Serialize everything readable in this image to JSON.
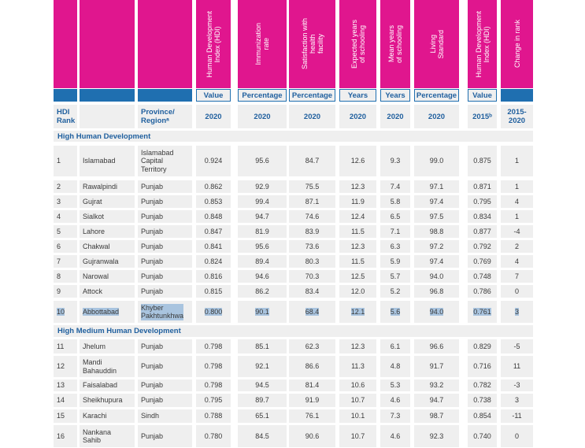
{
  "columns": [
    {
      "key": "rank",
      "header": "HDI Rank",
      "unit": "",
      "year": ""
    },
    {
      "key": "district",
      "header": "",
      "unit": "",
      "year": ""
    },
    {
      "key": "province",
      "header": "Province/\nRegionᵃ",
      "unit": "",
      "year": ""
    },
    {
      "key": "hdi",
      "header": "Human Development\nIndex (HDI)",
      "unit": "Value",
      "year": "2020"
    },
    {
      "key": "immunization",
      "header": "Immunization\nrate",
      "unit": "Percentage",
      "year": "2020"
    },
    {
      "key": "satisfaction",
      "header": "Satisfaction with\nhealth\nfacility",
      "unit": "Percentage",
      "year": "2020"
    },
    {
      "key": "expected",
      "header": "Expected years\nof schooling",
      "unit": "Years",
      "year": "2020"
    },
    {
      "key": "mean",
      "header": "Mean years\nof schooling",
      "unit": "Years",
      "year": "2020"
    },
    {
      "key": "living",
      "header": "Living\nStandard",
      "unit": "Percentage",
      "year": "2020"
    },
    {
      "key": "hdi2015",
      "header": "Human Development\nIndex (HDI)",
      "unit": "Value",
      "year": "2015ᵇ"
    },
    {
      "key": "change",
      "header": "Change in rank",
      "unit": "",
      "year": "2015-\n2020"
    }
  ],
  "groups": [
    {
      "title": "High Human Development",
      "rows": [
        [
          "1",
          "Islamabad",
          "Islamabad\nCapital\nTerritory",
          "0.924",
          "95.6",
          "84.7",
          "12.6",
          "9.3",
          "99.0",
          "0.875",
          "1"
        ],
        [
          "2",
          "Rawalpindi",
          "Punjab",
          "0.862",
          "92.9",
          "75.5",
          "12.3",
          "7.4",
          "97.1",
          "0.871",
          "1"
        ],
        [
          "3",
          "Gujrat",
          "Punjab",
          "0.853",
          "99.4",
          "87.1",
          "11.9",
          "5.8",
          "97.4",
          "0.795",
          "4"
        ],
        [
          "4",
          "Sialkot",
          "Punjab",
          "0.848",
          "94.7",
          "74.6",
          "12.4",
          "6.5",
          "97.5",
          "0.834",
          "1"
        ],
        [
          "5",
          "Lahore",
          "Punjab",
          "0.847",
          "81.9",
          "83.9",
          "11.5",
          "7.1",
          "98.8",
          "0.877",
          "-4"
        ],
        [
          "6",
          "Chakwal",
          "Punjab",
          "0.841",
          "95.6",
          "73.6",
          "12.3",
          "6.3",
          "97.2",
          "0.792",
          "2"
        ],
        [
          "7",
          "Gujranwala",
          "Punjab",
          "0.824",
          "89.4",
          "80.3",
          "11.5",
          "5.9",
          "97.4",
          "0.769",
          "4"
        ],
        [
          "8",
          "Narowal",
          "Punjab",
          "0.816",
          "94.6",
          "70.3",
          "12.5",
          "5.7",
          "94.0",
          "0.748",
          "7"
        ],
        [
          "9",
          "Attock",
          "Punjab",
          "0.815",
          "86.2",
          "83.4",
          "12.0",
          "5.2",
          "96.8",
          "0.786",
          "0"
        ],
        [
          "10",
          "Abbottabad",
          "Khyber\nPakhtunkhwa",
          "0.800",
          "90.1",
          "68.4",
          "12.1",
          "5.6",
          "94.0",
          "0.761",
          "3"
        ]
      ]
    },
    {
      "title": "High Medium Human Development",
      "rows": [
        [
          "11",
          "Jhelum",
          "Punjab",
          "0.798",
          "85.1",
          "62.3",
          "12.3",
          "6.1",
          "96.6",
          "0.829",
          "-5"
        ],
        [
          "12",
          "Mandi\nBahauddin",
          "Punjab",
          "0.798",
          "92.1",
          "86.6",
          "11.3",
          "4.8",
          "91.7",
          "0.716",
          "11"
        ],
        [
          "13",
          "Faisalabad",
          "Punjab",
          "0.798",
          "94.5",
          "81.4",
          "10.6",
          "5.3",
          "93.2",
          "0.782",
          "-3"
        ],
        [
          "14",
          "Sheikhupura",
          "Punjab",
          "0.795",
          "89.7",
          "91.9",
          "10.7",
          "4.6",
          "94.7",
          "0.738",
          "3"
        ],
        [
          "15",
          "Karachi",
          "Sindh",
          "0.788",
          "65.1",
          "76.1",
          "10.1",
          "7.3",
          "98.7",
          "0.854",
          "-11"
        ],
        [
          "16",
          "Nankana\nSahib",
          "Punjab",
          "0.780",
          "84.5",
          "90.6",
          "10.7",
          "4.6",
          "92.3",
          "0.740",
          "0"
        ]
      ]
    }
  ],
  "colors": {
    "header": "#e0168e",
    "unit_bar": "#1f6fb0",
    "cell": "#efefef",
    "selection": "#a9c4df",
    "text_accent": "#1f5f9e"
  }
}
